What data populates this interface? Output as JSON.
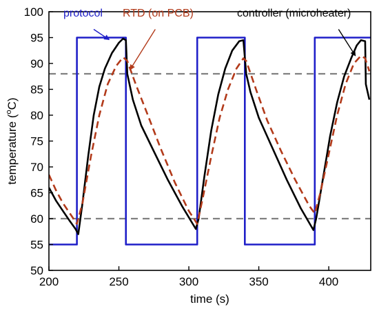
{
  "chart_data": {
    "type": "line",
    "xlabel": "time (s)",
    "ylabel_main": "temperature (",
    "ylabel_sup": "o",
    "ylabel_end": "C)",
    "xlim": [
      200,
      430
    ],
    "ylim": [
      50,
      100
    ],
    "xticks": [
      200,
      250,
      300,
      350,
      400
    ],
    "yticks": [
      50,
      55,
      60,
      65,
      70,
      75,
      80,
      85,
      90,
      95,
      100
    ],
    "grid": false,
    "colors": {
      "protocol": "#1f1fc8",
      "rtd": "#b23a1a",
      "controller": "#000000",
      "reference": "#808080"
    },
    "series": [
      {
        "name": "protocol",
        "style": "solid",
        "points": [
          [
            200,
            55
          ],
          [
            220,
            55
          ],
          [
            220,
            95
          ],
          [
            255,
            95
          ],
          [
            255,
            55
          ],
          [
            306,
            55
          ],
          [
            306,
            95
          ],
          [
            340,
            95
          ],
          [
            340,
            55
          ],
          [
            390,
            55
          ],
          [
            390,
            95
          ],
          [
            430,
            95
          ]
        ]
      },
      {
        "name": "RTD (on PCB)",
        "style": "dashed",
        "points": [
          [
            200,
            68.5
          ],
          [
            205,
            65.5
          ],
          [
            210,
            63
          ],
          [
            215,
            61
          ],
          [
            220,
            59
          ],
          [
            224,
            63
          ],
          [
            230,
            72
          ],
          [
            236,
            80
          ],
          [
            242,
            86
          ],
          [
            248,
            89.5
          ],
          [
            253,
            91.2
          ],
          [
            256,
            90.5
          ],
          [
            262,
            86
          ],
          [
            270,
            80.5
          ],
          [
            280,
            73.5
          ],
          [
            290,
            67
          ],
          [
            300,
            61.5
          ],
          [
            306,
            59
          ],
          [
            310,
            64
          ],
          [
            316,
            72
          ],
          [
            322,
            79.5
          ],
          [
            328,
            85
          ],
          [
            334,
            89
          ],
          [
            339,
            91
          ],
          [
            341,
            90.5
          ],
          [
            348,
            85
          ],
          [
            356,
            79
          ],
          [
            366,
            73
          ],
          [
            376,
            67.5
          ],
          [
            386,
            62.5
          ],
          [
            390,
            61
          ],
          [
            394,
            65
          ],
          [
            400,
            72.5
          ],
          [
            406,
            80
          ],
          [
            412,
            86
          ],
          [
            418,
            90
          ],
          [
            423,
            91.5
          ],
          [
            426,
            91
          ],
          [
            429,
            88.5
          ]
        ]
      },
      {
        "name": "controller (microheater)",
        "style": "solid",
        "points": [
          [
            200,
            66
          ],
          [
            205,
            63.5
          ],
          [
            210,
            61.5
          ],
          [
            215,
            59.5
          ],
          [
            219,
            58
          ],
          [
            221,
            57
          ],
          [
            224,
            63
          ],
          [
            228,
            72
          ],
          [
            232,
            80
          ],
          [
            236,
            85.5
          ],
          [
            240,
            89
          ],
          [
            245,
            92
          ],
          [
            250,
            94
          ],
          [
            253,
            94.8
          ],
          [
            255,
            94.5
          ],
          [
            256,
            88
          ],
          [
            260,
            83
          ],
          [
            266,
            78
          ],
          [
            275,
            73
          ],
          [
            285,
            67.5
          ],
          [
            295,
            62.5
          ],
          [
            305,
            58
          ],
          [
            307,
            60
          ],
          [
            311,
            68
          ],
          [
            316,
            77
          ],
          [
            321,
            84
          ],
          [
            326,
            89
          ],
          [
            331,
            92.5
          ],
          [
            336,
            94.3
          ],
          [
            339,
            94.5
          ],
          [
            341,
            88
          ],
          [
            344,
            84.5
          ],
          [
            350,
            79.5
          ],
          [
            360,
            73.5
          ],
          [
            370,
            67.5
          ],
          [
            380,
            62
          ],
          [
            389,
            57.8
          ],
          [
            391,
            60
          ],
          [
            396,
            68
          ],
          [
            401,
            76
          ],
          [
            406,
            82.5
          ],
          [
            411,
            87.5
          ],
          [
            416,
            91
          ],
          [
            420,
            93.5
          ],
          [
            423,
            94.5
          ],
          [
            426,
            94.3
          ],
          [
            426.5,
            86
          ],
          [
            429,
            83
          ]
        ]
      },
      {
        "name": "reference-88",
        "style": "dashed",
        "points": [
          [
            200,
            88
          ],
          [
            430,
            88
          ]
        ]
      },
      {
        "name": "reference-60",
        "style": "dashed",
        "points": [
          [
            200,
            60
          ],
          [
            430,
            60
          ]
        ]
      }
    ],
    "annotations": [
      {
        "text": "protocol",
        "series": "protocol",
        "arrow_from": [
          232,
          96.6
        ],
        "arrow_to": [
          243,
          94.6
        ]
      },
      {
        "text": "RTD (on PCB)",
        "series": "RTD (on PCB)",
        "arrow_from": [
          276,
          96.6
        ],
        "arrow_to": [
          258,
          88.8
        ]
      },
      {
        "text": "controller (microheater)",
        "series": "controller (microheater)",
        "arrow_from": [
          407,
          96.6
        ],
        "arrow_to": [
          419,
          91.5
        ]
      }
    ]
  }
}
